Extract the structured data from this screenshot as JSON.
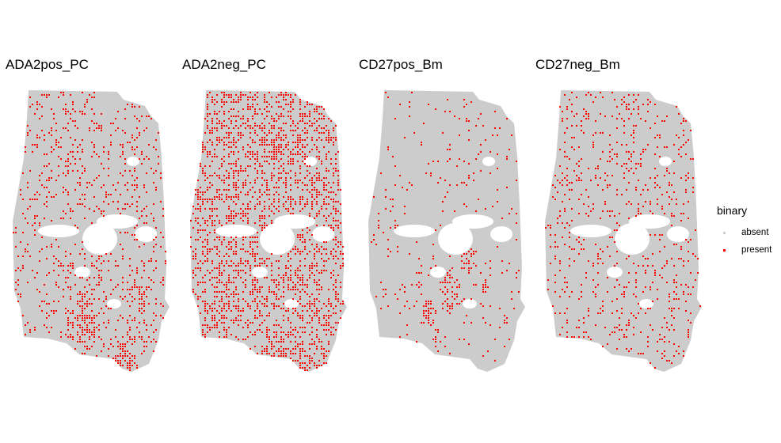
{
  "chart_data": {
    "type": "scatter",
    "description_type": "spatial binary maps (faceted)",
    "legend": {
      "title": "binary",
      "position": "right",
      "entries": [
        {
          "label": "absent",
          "color": "#CCCCCC"
        },
        {
          "label": "present",
          "color": "#FF0000"
        }
      ]
    },
    "grid": false,
    "axes_visible": false,
    "panels": [
      {
        "title": "ADA2pos_PC",
        "present_fraction_overall": 0.12,
        "hotspots": [
          {
            "x": 0.45,
            "y": 0.8,
            "r": 0.12,
            "fraction": 0.55
          },
          {
            "x": 0.72,
            "y": 0.93,
            "r": 0.09,
            "fraction": 0.6
          },
          {
            "x": 0.8,
            "y": 0.7,
            "r": 0.08,
            "fraction": 0.5
          },
          {
            "x": 0.55,
            "y": 0.6,
            "r": 0.08,
            "fraction": 0.35
          }
        ]
      },
      {
        "title": "ADA2neg_PC",
        "present_fraction_overall": 0.32,
        "hotspots": [
          {
            "x": 0.55,
            "y": 0.15,
            "r": 0.25,
            "fraction": 0.45
          },
          {
            "x": 0.4,
            "y": 0.88,
            "r": 0.12,
            "fraction": 0.4
          }
        ]
      },
      {
        "title": "CD27pos_Bm",
        "present_fraction_overall": 0.04,
        "hotspots": [
          {
            "x": 0.52,
            "y": 0.7,
            "r": 0.08,
            "fraction": 0.6
          },
          {
            "x": 0.63,
            "y": 0.6,
            "r": 0.06,
            "fraction": 0.55
          },
          {
            "x": 0.73,
            "y": 0.68,
            "r": 0.03,
            "fraction": 0.95
          },
          {
            "x": 0.4,
            "y": 0.78,
            "r": 0.05,
            "fraction": 0.7
          },
          {
            "x": 0.45,
            "y": 0.86,
            "r": 0.03,
            "fraction": 0.7
          },
          {
            "x": 0.85,
            "y": 0.8,
            "r": 0.02,
            "fraction": 0.8
          }
        ]
      },
      {
        "title": "CD27neg_Bm",
        "present_fraction_overall": 0.11,
        "hotspots": [
          {
            "x": 0.25,
            "y": 0.1,
            "r": 0.12,
            "fraction": 0.2
          }
        ]
      }
    ]
  }
}
